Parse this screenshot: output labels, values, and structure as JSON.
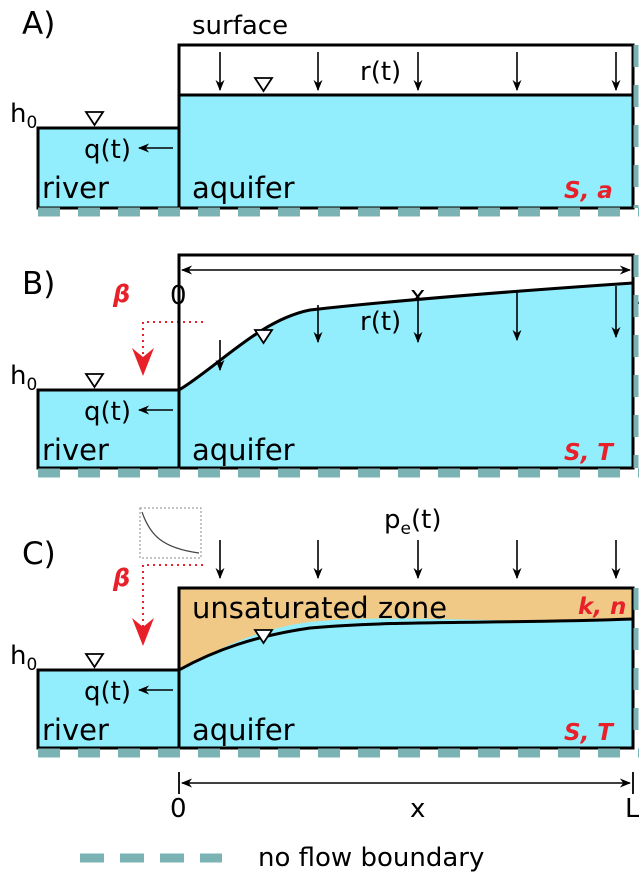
{
  "colors": {
    "water": "#92eefc",
    "unsaturated": "#f0c987",
    "boundary": "#7bb3b5",
    "accent": "#e8202a",
    "outline": "#000000"
  },
  "panels": {
    "a": {
      "label": "A)",
      "surface_label": "surface",
      "recharge_label": "r(t)",
      "head_label": "h",
      "head_sub": "0",
      "flux_label": "q(t)",
      "river_label": "river",
      "aquifer_label": "aquifer",
      "params": "S, a"
    },
    "b": {
      "label": "B)",
      "recharge_label": "r(t)",
      "head_label": "h",
      "head_sub": "0",
      "flux_label": "q(t)",
      "river_label": "river",
      "aquifer_label": "aquifer",
      "params": "S, T",
      "beta": "β"
    },
    "c": {
      "label": "C)",
      "precip_label": "p",
      "precip_sub": "e",
      "precip_suffix": "(t)",
      "unsat_label": "unsaturated zone",
      "unsat_params": "k, n",
      "head_label": "h",
      "head_sub": "0",
      "flux_label": "q(t)",
      "river_label": "river",
      "aquifer_label": "aquifer",
      "params": "S, T",
      "beta": "β"
    }
  },
  "axis": {
    "start": "0",
    "variable": "x",
    "end": "L"
  },
  "legend": {
    "label": "no flow boundary"
  }
}
